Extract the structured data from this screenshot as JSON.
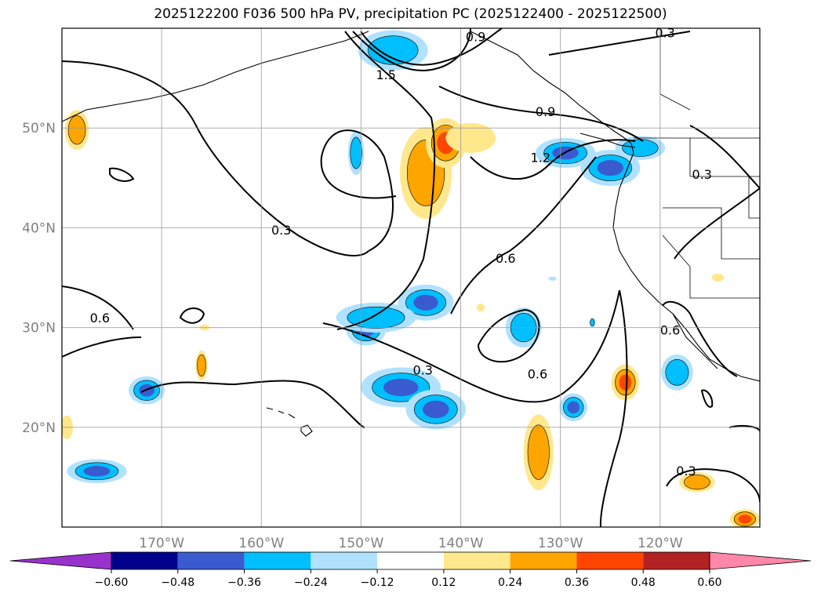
{
  "chart_data": {
    "type": "map-contour",
    "title": "2025122200 F036 500 hPa PV, precipitation PC (2025122400 - 2025122500)",
    "xaxis": {
      "ticks": [
        -170,
        -160,
        -150,
        -140,
        -130,
        -120
      ],
      "tick_labels": [
        "170°W",
        "160°W",
        "150°W",
        "140°W",
        "130°W",
        "120°W"
      ],
      "range": [
        -180,
        -110
      ]
    },
    "yaxis": {
      "ticks": [
        20,
        30,
        40,
        50
      ],
      "tick_labels": [
        "20°N",
        "30°N",
        "40°N",
        "50°N"
      ],
      "range": [
        10,
        60
      ]
    },
    "grid": true,
    "contour_levels_labeled": [
      0.3,
      0.6,
      0.9,
      1.2,
      1.5
    ],
    "contour_labels": [
      {
        "text": "0.9",
        "lon": -138.5,
        "lat": 59.1
      },
      {
        "text": "1.5",
        "lon": -147.5,
        "lat": 55.3
      },
      {
        "text": "0.3",
        "lon": -119.5,
        "lat": 59.5
      },
      {
        "text": "0.9",
        "lon": -131.5,
        "lat": 51.6
      },
      {
        "text": "1.2",
        "lon": -132.0,
        "lat": 47.0
      },
      {
        "text": "0.3",
        "lon": -115.8,
        "lat": 45.3
      },
      {
        "text": "0.3",
        "lon": -158.0,
        "lat": 39.7
      },
      {
        "text": "0.6",
        "lon": -135.5,
        "lat": 36.9
      },
      {
        "text": "0.6",
        "lon": -176.2,
        "lat": 30.9
      },
      {
        "text": "0.3",
        "lon": -143.8,
        "lat": 25.7
      },
      {
        "text": "0.6",
        "lon": -132.3,
        "lat": 25.3
      },
      {
        "text": "0.6",
        "lon": -119.0,
        "lat": 29.7
      },
      {
        "text": "0.3",
        "lon": -117.4,
        "lat": 15.6
      }
    ],
    "colorbar": {
      "levels": [
        -0.6,
        -0.48,
        -0.36,
        -0.24,
        -0.12,
        0.12,
        0.24,
        0.36,
        0.48,
        0.6
      ],
      "tick_labels": [
        "−0.60",
        "−0.48",
        "−0.36",
        "−0.24",
        "−0.12",
        "0.12",
        "0.24",
        "0.36",
        "0.48",
        "0.60"
      ],
      "colors": [
        "#9932cc",
        "#00008b",
        "#3a5bd0",
        "#00bfff",
        "#b0e2ff",
        "#ffffff",
        "#ffe88c",
        "#ffa500",
        "#ff4500",
        "#b22222",
        "#ff88aa"
      ],
      "extend": "both"
    },
    "precip_blobs": [
      {
        "lon": -176.5,
        "lat": 15.6,
        "rx": 3.0,
        "ry": 1.2,
        "v": -0.45
      },
      {
        "lon": -171.5,
        "lat": 23.7,
        "rx": 1.8,
        "ry": 1.4,
        "v": -0.4
      },
      {
        "lon": -166.0,
        "lat": 26.2,
        "rx": 0.6,
        "ry": 1.5,
        "v": 0.3
      },
      {
        "lon": -165.7,
        "lat": 30.0,
        "rx": 0.5,
        "ry": 0.3,
        "v": 0.15
      },
      {
        "lon": -149.5,
        "lat": 29.8,
        "rx": 2.0,
        "ry": 1.6,
        "v": -0.4
      },
      {
        "lon": -146.0,
        "lat": 24.0,
        "rx": 4.0,
        "ry": 2.0,
        "v": -0.42
      },
      {
        "lon": -142.5,
        "lat": 21.8,
        "rx": 3.0,
        "ry": 2.0,
        "v": -0.4
      },
      {
        "lon": -143.5,
        "lat": 32.5,
        "rx": 2.8,
        "ry": 1.8,
        "v": -0.4
      },
      {
        "lon": -148.5,
        "lat": 31.0,
        "rx": 4.0,
        "ry": 1.5,
        "v": -0.3
      },
      {
        "lon": -150.5,
        "lat": 47.5,
        "rx": 0.8,
        "ry": 2.2,
        "v": -0.3
      },
      {
        "lon": -143.5,
        "lat": 45.5,
        "rx": 2.6,
        "ry": 4.6,
        "v": 0.33
      },
      {
        "lon": -141.5,
        "lat": 48.5,
        "rx": 2.0,
        "ry": 2.5,
        "v": 0.4
      },
      {
        "lon": -139.0,
        "lat": 49.0,
        "rx": 2.5,
        "ry": 1.5,
        "v": 0.2
      },
      {
        "lon": -146.8,
        "lat": 57.8,
        "rx": 3.5,
        "ry": 2.0,
        "v": -0.3
      },
      {
        "lon": -129.5,
        "lat": 47.5,
        "rx": 3.0,
        "ry": 1.5,
        "v": -0.4
      },
      {
        "lon": -125.0,
        "lat": 46.0,
        "rx": 3.0,
        "ry": 1.8,
        "v": -0.42
      },
      {
        "lon": -122.0,
        "lat": 48.0,
        "rx": 2.5,
        "ry": 1.2,
        "v": -0.3
      },
      {
        "lon": -133.7,
        "lat": 30.0,
        "rx": 1.8,
        "ry": 2.0,
        "v": -0.3
      },
      {
        "lon": -138.0,
        "lat": 32.0,
        "rx": 0.4,
        "ry": 0.4,
        "v": 0.15
      },
      {
        "lon": -130.8,
        "lat": 34.9,
        "rx": 0.4,
        "ry": 0.2,
        "v": -0.2
      },
      {
        "lon": -126.8,
        "lat": 30.5,
        "rx": 0.3,
        "ry": 0.5,
        "v": -0.3
      },
      {
        "lon": -128.7,
        "lat": 22.0,
        "rx": 1.4,
        "ry": 1.4,
        "v": -0.42
      },
      {
        "lon": -123.5,
        "lat": 24.5,
        "rx": 1.4,
        "ry": 1.8,
        "v": 0.4
      },
      {
        "lon": -118.3,
        "lat": 25.5,
        "rx": 1.6,
        "ry": 1.8,
        "v": -0.3
      },
      {
        "lon": -132.2,
        "lat": 17.5,
        "rx": 1.5,
        "ry": 3.8,
        "v": 0.3
      },
      {
        "lon": -116.3,
        "lat": 14.5,
        "rx": 1.8,
        "ry": 1.0,
        "v": 0.3
      },
      {
        "lon": -178.5,
        "lat": 49.8,
        "rx": 1.2,
        "ry": 2.0,
        "v": 0.3
      },
      {
        "lon": -179.5,
        "lat": 20.0,
        "rx": 0.6,
        "ry": 1.2,
        "v": 0.2
      },
      {
        "lon": -111.5,
        "lat": 10.8,
        "rx": 1.5,
        "ry": 1.0,
        "v": 0.38
      },
      {
        "lon": -114.2,
        "lat": 35.0,
        "rx": 0.6,
        "ry": 0.4,
        "v": 0.2
      }
    ]
  }
}
